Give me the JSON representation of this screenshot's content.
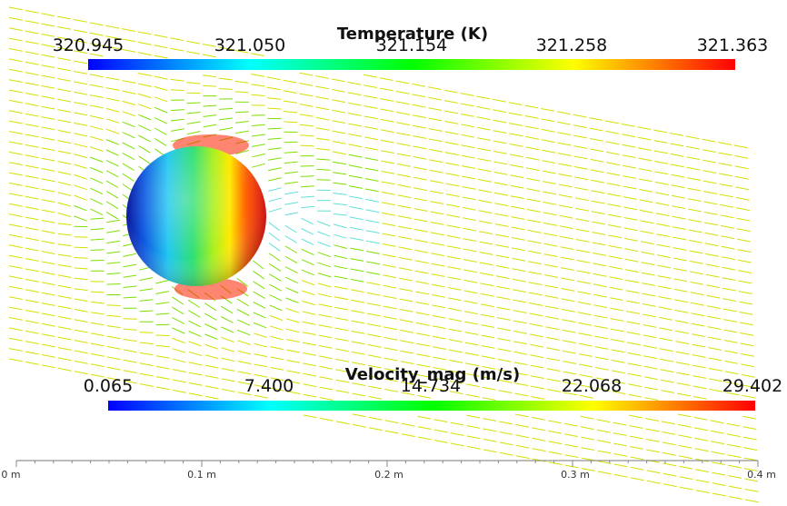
{
  "temperature_legend": {
    "title": "Temperature (K)",
    "ticks": [
      "320.945",
      "321.050",
      "321.154",
      "321.258",
      "321.363"
    ],
    "colors": [
      "#0000ff",
      "#00ffff",
      "#00ff00",
      "#ffff00",
      "#ff0000"
    ]
  },
  "velocity_legend": {
    "title": "Velocity_mag (m/s)",
    "ticks": [
      "0.065",
      "7.400",
      "14.734",
      "22.068",
      "29.402"
    ],
    "colors": [
      "#0000ff",
      "#00ffff",
      "#00ff00",
      "#ffff00",
      "#ff0000"
    ]
  },
  "axis": {
    "ticks": [
      "0 m",
      "0.1 m",
      "0.2 m",
      "0.3 m",
      "0.4 m"
    ]
  }
}
